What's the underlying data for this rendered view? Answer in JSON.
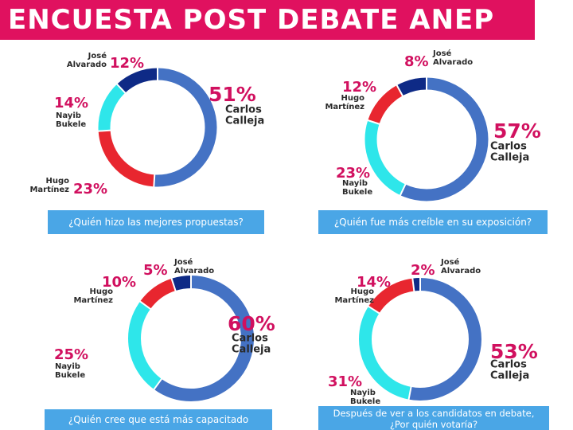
{
  "header": {
    "title": "ENCUESTA POST DEBATE ANEP"
  },
  "colors": {
    "Carlos Calleja": "#4472c4",
    "Hugo Martínez": "#e8262f",
    "Nayib Bukele": "#2ee6ea",
    "José Alvarado": "#0e2a86",
    "percent_text": "#d1105f",
    "header_bg": "#e0115f",
    "question_bg": "#4aa6e6"
  },
  "chart_data": [
    {
      "type": "pie",
      "question": "¿Quién hizo las mejores propuestas?",
      "slices": [
        {
          "name": "Carlos Calleja",
          "value": 51,
          "label": "51%",
          "name_lines": [
            "Carlos",
            "Calleja"
          ]
        },
        {
          "name": "Hugo Martínez",
          "value": 23,
          "label": "23%",
          "name_lines": [
            "Hugo",
            "Martínez"
          ]
        },
        {
          "name": "Nayib Bukele",
          "value": 14,
          "label": "14%",
          "name_lines": [
            "Nayib",
            "Bukele"
          ]
        },
        {
          "name": "José Alvarado",
          "value": 12,
          "label": "12%",
          "name_lines": [
            "José",
            "Alvarado"
          ]
        }
      ]
    },
    {
      "type": "pie",
      "question": "¿Quién fue más creíble en su exposición?",
      "slices": [
        {
          "name": "Carlos Calleja",
          "value": 57,
          "label": "57%",
          "name_lines": [
            "Carlos",
            "Calleja"
          ]
        },
        {
          "name": "Nayib Bukele",
          "value": 23,
          "label": "23%",
          "name_lines": [
            "Nayib",
            "Bukele"
          ]
        },
        {
          "name": "Hugo Martínez",
          "value": 12,
          "label": "12%",
          "name_lines": [
            "Hugo",
            "Martínez"
          ]
        },
        {
          "name": "José Alvarado",
          "value": 8,
          "label": "8%",
          "name_lines": [
            "José",
            "Alvarado"
          ]
        }
      ]
    },
    {
      "type": "pie",
      "question": "¿Quién cree que está más capacitado",
      "slices": [
        {
          "name": "Carlos Calleja",
          "value": 60,
          "label": "60%",
          "name_lines": [
            "Carlos",
            "Calleja"
          ]
        },
        {
          "name": "Nayib Bukele",
          "value": 25,
          "label": "25%",
          "name_lines": [
            "Nayib",
            "Bukele"
          ]
        },
        {
          "name": "Hugo Martínez",
          "value": 10,
          "label": "10%",
          "name_lines": [
            "Hugo",
            "Martínez"
          ]
        },
        {
          "name": "José Alvarado",
          "value": 5,
          "label": "5%",
          "name_lines": [
            "José",
            "Alvarado"
          ]
        }
      ]
    },
    {
      "type": "pie",
      "question": "Después de ver a los candidatos en debate, ¿Por quién votaría?",
      "slices": [
        {
          "name": "Carlos Calleja",
          "value": 53,
          "label": "53%",
          "name_lines": [
            "Carlos",
            "Calleja"
          ]
        },
        {
          "name": "Nayib Bukele",
          "value": 31,
          "label": "31%",
          "name_lines": [
            "Nayib",
            "Bukele"
          ]
        },
        {
          "name": "Hugo Martínez",
          "value": 14,
          "label": "14%",
          "name_lines": [
            "Hugo",
            "Martínez"
          ]
        },
        {
          "name": "José Alvarado",
          "value": 2,
          "label": "2%",
          "name_lines": [
            "José",
            "Alvarado"
          ]
        }
      ]
    }
  ]
}
